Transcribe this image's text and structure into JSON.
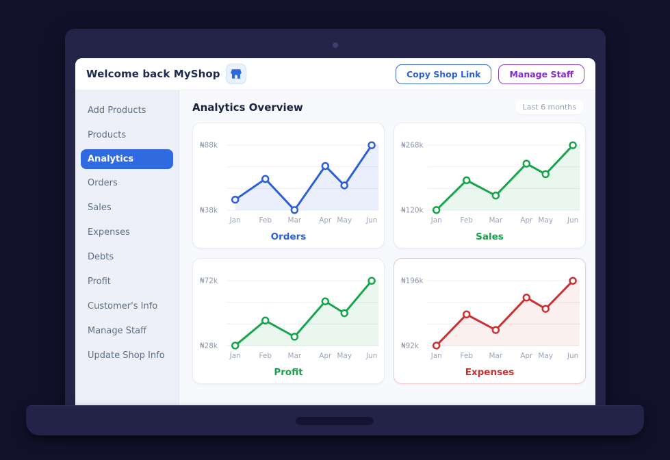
{
  "window": {
    "header": {
      "title": "Welcome back MyShop",
      "shop_icon": "storefront-icon",
      "copy_link_label": "Copy Shop Link",
      "manage_staff_label": "Manage Staff"
    },
    "sidebar": {
      "items": [
        {
          "label": "Add Products",
          "active": false
        },
        {
          "label": "Products",
          "active": false
        },
        {
          "label": "Analytics",
          "active": true
        },
        {
          "label": "Orders",
          "active": false
        },
        {
          "label": "Sales",
          "active": false
        },
        {
          "label": "Expenses",
          "active": false
        },
        {
          "label": "Debts",
          "active": false
        },
        {
          "label": "Profit",
          "active": false
        },
        {
          "label": "Customer's Info",
          "active": false
        },
        {
          "label": "Manage Staff",
          "active": false
        },
        {
          "label": "Update Shop Info",
          "active": false
        }
      ]
    },
    "main": {
      "heading": "Analytics Overview",
      "range_badge": "Last 6 months"
    }
  },
  "colors": {
    "page_bg": "#11112a",
    "laptop_bezel": "#242449",
    "laptop_base": "#232347",
    "active_sidebar_item": "#2f6ae0",
    "copy_link_button": "#2e62d0",
    "manage_staff_button": "#8429cf"
  },
  "chart_data": [
    {
      "type": "line",
      "title": "Orders",
      "x": [
        "Jan",
        "Feb",
        "Mar",
        "Apr",
        "May",
        "Jun"
      ],
      "values": [
        46,
        62,
        38,
        72,
        57,
        88
      ],
      "unit": "₦k",
      "ylim": [
        38,
        88
      ],
      "y_tick_labels": [
        "₦88k",
        "₦38k"
      ],
      "grid": true,
      "legend": false,
      "color": "#2b5fd9",
      "fill": "rgba(59,102,217,0.10)",
      "card_border": "#e8ecf4"
    },
    {
      "type": "line",
      "title": "Sales",
      "x": [
        "Jan",
        "Feb",
        "Mar",
        "Apr",
        "May",
        "Jun"
      ],
      "values": [
        120,
        188,
        153,
        226,
        202,
        268
      ],
      "unit": "₦k",
      "ylim": [
        120,
        268
      ],
      "y_tick_labels": [
        "₦268k",
        "₦120k"
      ],
      "grid": true,
      "legend": false,
      "color": "#17a34a",
      "fill": "rgba(23,163,74,0.09)",
      "card_border": "#e8ecf4"
    },
    {
      "type": "line",
      "title": "Profit",
      "x": [
        "Jan",
        "Feb",
        "Mar",
        "Apr",
        "May",
        "Jun"
      ],
      "values": [
        28,
        45,
        34,
        58,
        50,
        72
      ],
      "unit": "₦k",
      "ylim": [
        28,
        72
      ],
      "y_tick_labels": [
        "₦72k",
        "₦28k"
      ],
      "grid": true,
      "legend": false,
      "color": "#17a34a",
      "fill": "rgba(23,163,74,0.09)",
      "card_border": "#e8ecf4"
    },
    {
      "type": "line",
      "title": "Expenses",
      "x": [
        "Jan",
        "Feb",
        "Mar",
        "Apr",
        "May",
        "Jun"
      ],
      "values": [
        92,
        142,
        117,
        169,
        151,
        196
      ],
      "unit": "₦k",
      "ylim": [
        92,
        196
      ],
      "y_tick_labels": [
        "₦196k",
        "₦92k"
      ],
      "grid": true,
      "legend": false,
      "color": "#cb2f2f",
      "fill": "rgba(203,47,47,0.08)",
      "card_border": "#f2c9c9"
    }
  ]
}
